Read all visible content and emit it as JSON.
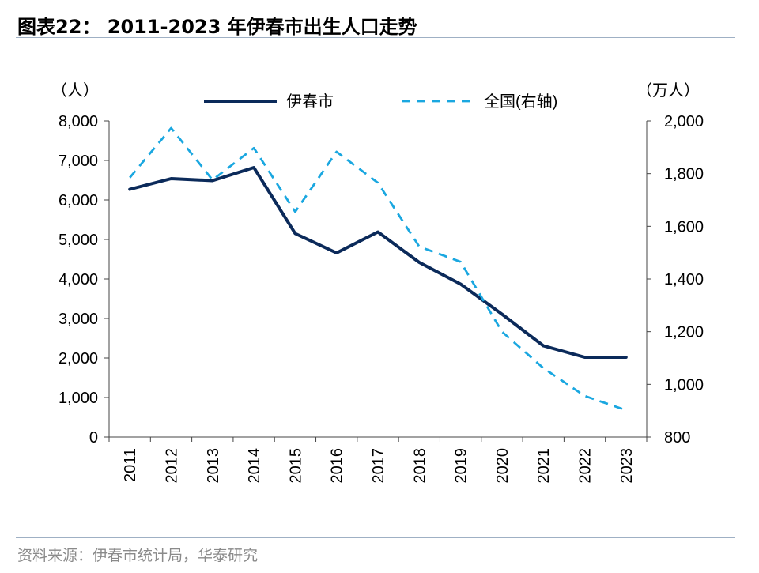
{
  "title": "图表22： 2011-2023 年伊春市出生人口走势",
  "source": "资料来源：伊春市统计局，华泰研究",
  "colors": {
    "primary": "#0b2a5a",
    "secondary": "#1aa7e0",
    "axis": "#444444"
  },
  "chart_data": {
    "type": "line",
    "categories": [
      "2011",
      "2012",
      "2013",
      "2014",
      "2015",
      "2016",
      "2017",
      "2018",
      "2019",
      "2020",
      "2021",
      "2022",
      "2023"
    ],
    "left_axis": {
      "unit": "（人）",
      "range": [
        0,
        8000
      ],
      "ticks": [
        "0",
        "1,000",
        "2,000",
        "3,000",
        "4,000",
        "5,000",
        "6,000",
        "7,000",
        "8,000"
      ]
    },
    "right_axis": {
      "unit": "（万人）",
      "range": [
        800,
        2000
      ],
      "ticks": [
        "800",
        "1,000",
        "1,200",
        "1,400",
        "1,600",
        "1,800",
        "2,000"
      ]
    },
    "legend_position": "top",
    "series": [
      {
        "name": "伊春市",
        "axis": "left",
        "style": "solid",
        "values": [
          6270,
          6540,
          6490,
          6820,
          5150,
          4660,
          5190,
          4420,
          3870,
          3110,
          2310,
          2020,
          2020
        ]
      },
      {
        "name": "全国(右轴)",
        "axis": "right",
        "style": "dashed",
        "values": [
          1785,
          1973,
          1776,
          1897,
          1655,
          1883,
          1765,
          1523,
          1465,
          1200,
          1062,
          956,
          902
        ]
      }
    ]
  }
}
